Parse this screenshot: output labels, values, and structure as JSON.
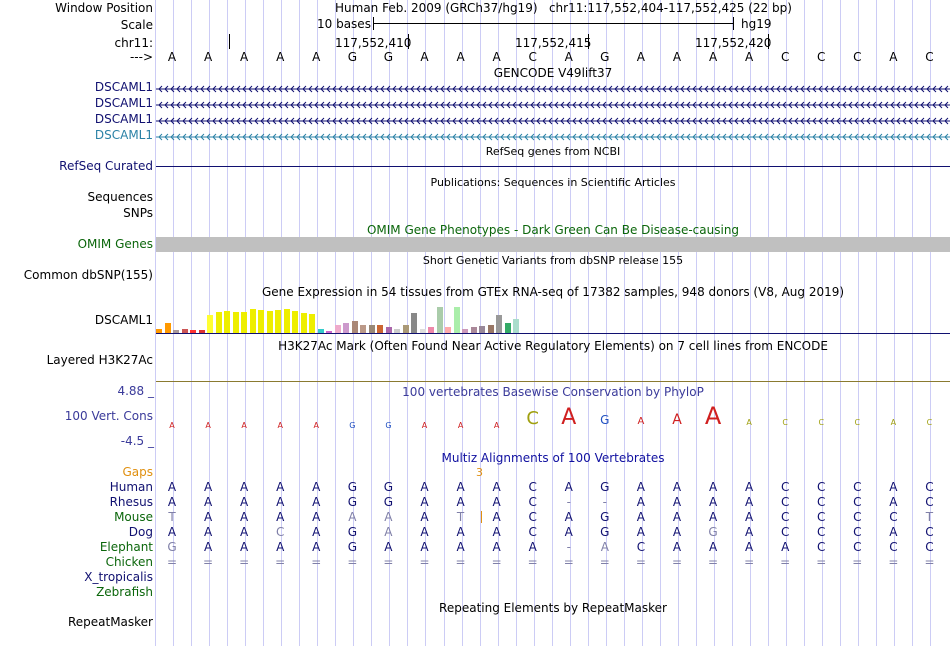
{
  "colors": {
    "navy": "#101070",
    "blue": "#1010a0",
    "teal": "#2b82a6",
    "green": "#0b660b",
    "orange": "#e09010",
    "olive": "#8a7a30",
    "purple": "#5a5a9a",
    "grey": "#c0c0c0",
    "red": "#d02020"
  },
  "ruler": {
    "window_label": "Window Position",
    "window_text": "Human Feb. 2009 (GRCh37/hg19)   chr11:117,552,404-117,552,425 (22 bp)",
    "scale_label": "Scale",
    "scale_text": "10 bases",
    "scale_right": "hg19",
    "chr_label": "chr11:",
    "ticks": [
      "117,552,410",
      "117,552,415",
      "117,552,420"
    ],
    "arrow_label": "--->",
    "bases": [
      "A",
      "A",
      "A",
      "A",
      "A",
      "G",
      "G",
      "A",
      "A",
      "A",
      "C",
      "A",
      "G",
      "A",
      "A",
      "A",
      "A",
      "C",
      "C",
      "C",
      "A",
      "C"
    ]
  },
  "gencode": {
    "title": "GENCODE V49lift37",
    "genes": [
      "DSCAML1",
      "DSCAML1",
      "DSCAML1",
      "DSCAML1"
    ]
  },
  "refseq": {
    "label": "RefSeq Curated",
    "title": "RefSeq genes from NCBI"
  },
  "publications": {
    "title": "Publications: Sequences in Scientific Articles",
    "label": "Sequences"
  },
  "snps": {
    "label": "SNPs",
    "omim_title": "OMIM Gene Phenotypes - Dark Green Can Be Disease-causing"
  },
  "omim": {
    "label": "OMIM Genes",
    "dbsnp_title": "Short Genetic Variants from dbSNP release 155"
  },
  "dbsnp": {
    "label": "Common dbSNP(155)"
  },
  "gtex": {
    "title": "Gene Expression in 54 tissues from GTEx RNA-seq of 17382 samples, 948 donors (V8, Aug 2019)",
    "label": "DSCAML1"
  },
  "h3k27ac": {
    "title": "H3K27Ac Mark (Often Found Near Active Regulatory Elements) on 7 cell lines from ENCODE",
    "label": "Layered H3K27Ac"
  },
  "phylop": {
    "title": "100 vertebrates Basewise Conservation by PhyloP",
    "label": "100 Vert. Cons",
    "max": "4.88 _",
    "min": "-4.5 _"
  },
  "multiz": {
    "title": "Multiz Alignments of 100 Vertebrates",
    "gaps_label": "Gaps",
    "gap_marker": "3",
    "species": [
      {
        "name": "Human",
        "bases": [
          "A",
          "A",
          "A",
          "A",
          "A",
          "G",
          "G",
          "A",
          "A",
          "A",
          "C",
          "A",
          "G",
          "A",
          "A",
          "A",
          "A",
          "C",
          "C",
          "C",
          "A",
          "C"
        ]
      },
      {
        "name": "Rhesus",
        "bases": [
          "A",
          "A",
          "A",
          "A",
          "A",
          "G",
          "G",
          "A",
          "A",
          "A",
          "C",
          "-",
          "-",
          "A",
          "A",
          "A",
          "A",
          "C",
          "C",
          "C",
          "A",
          "C"
        ]
      },
      {
        "name": "Mouse",
        "bases": [
          "T",
          "A",
          "A",
          "A",
          "A",
          "A",
          "A",
          "A",
          "T",
          "A",
          "C",
          "A",
          "G",
          "A",
          "A",
          "A",
          "A",
          "C",
          "C",
          "C",
          "C",
          "T"
        ]
      },
      {
        "name": "Dog",
        "bases": [
          "A",
          "A",
          "A",
          "C",
          "A",
          "G",
          "A",
          "A",
          "A",
          "A",
          "C",
          "A",
          "G",
          "A",
          "A",
          "G",
          "A",
          "C",
          "C",
          "C",
          "A",
          "C"
        ]
      },
      {
        "name": "Elephant",
        "bases": [
          "G",
          "A",
          "A",
          "A",
          "A",
          "G",
          "A",
          "A",
          "A",
          "A",
          "A",
          "-",
          "A",
          "C",
          "A",
          "A",
          "A",
          "A",
          "C",
          "C",
          "C",
          "C"
        ]
      },
      {
        "name": "Chicken",
        "bases": [
          "=",
          "=",
          "=",
          "=",
          "=",
          "=",
          "=",
          "=",
          "=",
          "=",
          "=",
          "=",
          "=",
          "=",
          "=",
          "=",
          "=",
          "=",
          "=",
          "=",
          "=",
          "="
        ]
      },
      {
        "name": "X_tropicalis",
        "bases": []
      },
      {
        "name": "Zebrafish",
        "bases": []
      }
    ]
  },
  "repeatmasker": {
    "title": "Repeating Elements by RepeatMasker",
    "label": "RepeatMasker"
  }
}
